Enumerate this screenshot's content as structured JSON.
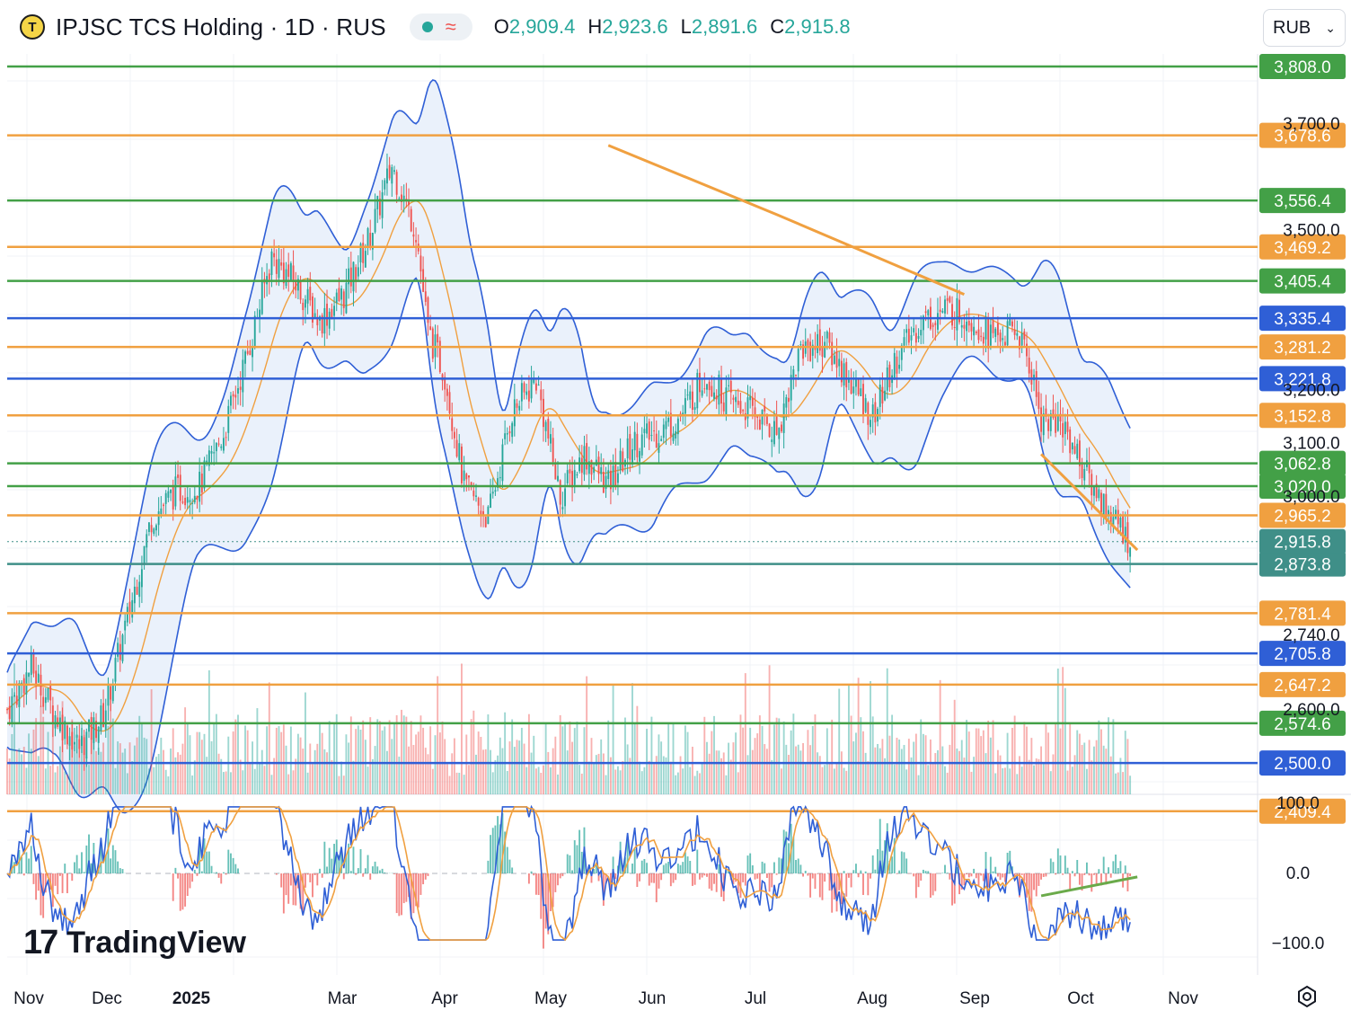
{
  "header": {
    "logo_letter": "T",
    "title": "IPJSC TCS Holding · 1D · RUS",
    "open_label": "O",
    "open": "2,909.4",
    "high_label": "H",
    "high": "2,923.6",
    "low_label": "L",
    "low": "2,891.6",
    "close_label": "C",
    "close": "2,915.8",
    "currency": "RUB"
  },
  "branding": {
    "name": "TradingView"
  },
  "chart_data": [
    {
      "type": "candlestick",
      "symbol": "IPJSC TCS Holding",
      "interval": "1D",
      "exchange": "RUS",
      "y_axis_ticks": [
        "3,700.0",
        "3,500.0",
        "3,200.0",
        "3,100.0",
        "3,000.0",
        "2,740.0",
        "2,600.0"
      ],
      "x_axis_labels": [
        "Nov",
        "Dec",
        "2025",
        "Mar",
        "Apr",
        "May",
        "Jun",
        "Jul",
        "Aug",
        "Sep",
        "Oct",
        "Nov"
      ],
      "last_price": "2,915.8",
      "horizontal_levels": [
        {
          "value": 3808.0,
          "label": "3,808.0",
          "color": "#43a047"
        },
        {
          "value": 3678.6,
          "label": "3,678.6",
          "color": "#f0a040"
        },
        {
          "value": 3556.4,
          "label": "3,556.4",
          "color": "#43a047"
        },
        {
          "value": 3469.2,
          "label": "3,469.2",
          "color": "#f0a040"
        },
        {
          "value": 3405.4,
          "label": "3,405.4",
          "color": "#43a047"
        },
        {
          "value": 3335.4,
          "label": "3,335.4",
          "color": "#2f5fd6"
        },
        {
          "value": 3281.2,
          "label": "3,281.2",
          "color": "#f0a040"
        },
        {
          "value": 3221.8,
          "label": "3,221.8",
          "color": "#2f5fd6"
        },
        {
          "value": 3152.8,
          "label": "3,152.8",
          "color": "#f0a040"
        },
        {
          "value": 3062.8,
          "label": "3,062.8",
          "color": "#43a047"
        },
        {
          "value": 3020.0,
          "label": "3,020.0",
          "color": "#43a047"
        },
        {
          "value": 2965.2,
          "label": "2,965.2",
          "color": "#f0a040"
        },
        {
          "value": 2873.8,
          "label": "2,873.8",
          "color": "#3f8f88"
        },
        {
          "value": 2781.4,
          "label": "2,781.4",
          "color": "#f0a040"
        },
        {
          "value": 2705.8,
          "label": "2,705.8",
          "color": "#2f5fd6"
        },
        {
          "value": 2647.2,
          "label": "2,647.2",
          "color": "#f0a040"
        },
        {
          "value": 2574.6,
          "label": "2,574.6",
          "color": "#43a047"
        },
        {
          "value": 2500.0,
          "label": "2,500.0",
          "color": "#2f5fd6"
        },
        {
          "value": 2409.4,
          "label": "2,409.4",
          "color": "#f0a040"
        }
      ],
      "price_path": [
        [
          0,
          2600
        ],
        [
          10,
          2680
        ],
        [
          20,
          2590
        ],
        [
          30,
          2530
        ],
        [
          40,
          2590
        ],
        [
          50,
          2770
        ],
        [
          60,
          2960
        ],
        [
          70,
          3010
        ],
        [
          80,
          3020
        ],
        [
          90,
          3120
        ],
        [
          100,
          3270
        ],
        [
          110,
          3450
        ],
        [
          120,
          3400
        ],
        [
          130,
          3330
        ],
        [
          140,
          3380
        ],
        [
          150,
          3480
        ],
        [
          160,
          3620
        ],
        [
          170,
          3500
        ],
        [
          175,
          3310
        ],
        [
          182,
          3230
        ],
        [
          190,
          3020
        ],
        [
          200,
          2960
        ],
        [
          210,
          3160
        ],
        [
          220,
          3220
        ],
        [
          230,
          3000
        ],
        [
          240,
          3080
        ],
        [
          250,
          3020
        ],
        [
          260,
          3100
        ],
        [
          270,
          3120
        ],
        [
          280,
          3150
        ],
        [
          290,
          3230
        ],
        [
          300,
          3180
        ],
        [
          310,
          3160
        ],
        [
          320,
          3120
        ],
        [
          330,
          3280
        ],
        [
          340,
          3290
        ],
        [
          350,
          3220
        ],
        [
          360,
          3150
        ],
        [
          370,
          3260
        ],
        [
          380,
          3330
        ],
        [
          390,
          3350
        ],
        [
          400,
          3340
        ],
        [
          410,
          3300
        ],
        [
          420,
          3310
        ],
        [
          425,
          3250
        ],
        [
          430,
          3150
        ],
        [
          440,
          3130
        ],
        [
          450,
          3030
        ],
        [
          460,
          2960
        ],
        [
          467,
          2915.8
        ]
      ],
      "trendlines": [
        {
          "name": "",
          "points": [
            [
              250,
              3660
            ],
            [
              320,
              3530
            ],
            [
              398,
              3380
            ]
          ],
          "color": "#f0a040"
        },
        {
          "name": "",
          "points": [
            [
              430,
              3080
            ],
            [
              470,
              2900
            ]
          ],
          "color": "#f0a040"
        }
      ],
      "indicators": [
        "Bollinger Bands",
        "SMA",
        "Volume",
        "Oscillator"
      ],
      "oscillator": {
        "y_axis_ticks": [
          "100.0",
          "0.0",
          "−100.0"
        ],
        "ylim": [
          -110,
          110
        ]
      },
      "colors": {
        "up": "#26a69a",
        "down": "#ef5350",
        "band_fill": "#eaf1fb",
        "band_line": "#2f5fd6",
        "ma": "#f0a040"
      }
    }
  ]
}
